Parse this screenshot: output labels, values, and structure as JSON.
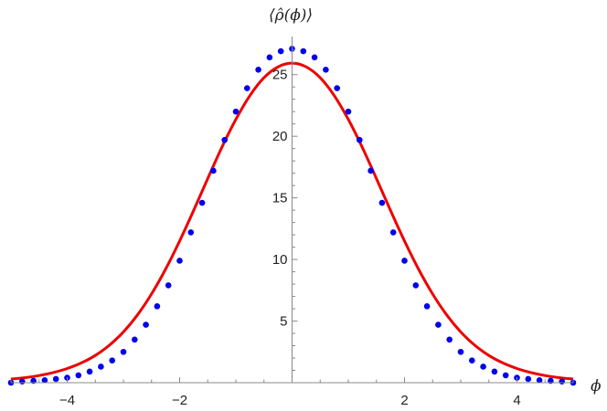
{
  "chart_data": {
    "type": "scatter",
    "xlabel": "ϕ",
    "ylabel": "⟨ρ̂(ϕ)⟩",
    "xlim": [
      -5,
      5
    ],
    "ylim": [
      0,
      27.5
    ],
    "x_ticks_major": [
      -4,
      -2,
      2,
      4
    ],
    "y_ticks_major": [
      5,
      10,
      15,
      20,
      25
    ],
    "grid": false,
    "colors": {
      "points": "#0000ee",
      "curve": "#ee0000",
      "axes": "#888888"
    },
    "series": [
      {
        "kind": "points",
        "x": [
          -5.0,
          -4.8,
          -4.6,
          -4.4,
          -4.2,
          -4.0,
          -3.8,
          -3.6,
          -3.4,
          -3.2,
          -3.0,
          -2.8,
          -2.6,
          -2.4,
          -2.2,
          -2.0,
          -1.8,
          -1.6,
          -1.4,
          -1.2,
          -1.0,
          -0.8,
          -0.6,
          -0.4,
          -0.2,
          0.0,
          0.2,
          0.4,
          0.6,
          0.8,
          1.0,
          1.2,
          1.4,
          1.6,
          1.8,
          2.0,
          2.2,
          2.4,
          2.6,
          2.8,
          3.0,
          3.2,
          3.4,
          3.6,
          3.8,
          4.0,
          4.2,
          4.4,
          4.6,
          4.8,
          5.0
        ],
        "y": [
          0.0,
          0.1,
          0.15,
          0.2,
          0.3,
          0.4,
          0.6,
          0.9,
          1.3,
          1.8,
          2.5,
          3.5,
          4.7,
          6.2,
          7.9,
          9.9,
          12.2,
          14.6,
          17.2,
          19.7,
          22.0,
          23.9,
          25.4,
          26.4,
          26.9,
          27.1,
          26.9,
          26.4,
          25.4,
          23.9,
          22.0,
          19.7,
          17.2,
          14.6,
          12.2,
          9.9,
          7.9,
          6.2,
          4.7,
          3.5,
          2.5,
          1.8,
          1.3,
          0.9,
          0.6,
          0.4,
          0.3,
          0.2,
          0.15,
          0.1,
          0.0
        ]
      },
      {
        "kind": "line",
        "x": [
          -5.0,
          -4.75,
          -4.5,
          -4.25,
          -4.0,
          -3.75,
          -3.5,
          -3.25,
          -3.0,
          -2.75,
          -2.5,
          -2.25,
          -2.0,
          -1.75,
          -1.5,
          -1.25,
          -1.0,
          -0.75,
          -0.5,
          -0.25,
          0.0,
          0.25,
          0.5,
          0.75,
          1.0,
          1.25,
          1.5,
          1.75,
          2.0,
          2.25,
          2.5,
          2.75,
          3.0,
          3.25,
          3.5,
          3.75,
          4.0,
          4.25,
          4.5,
          4.75,
          5.0
        ],
        "y": [
          0.29,
          0.41,
          0.58,
          0.82,
          1.15,
          1.6,
          2.21,
          3.04,
          4.12,
          5.5,
          7.2,
          9.21,
          11.5,
          13.99,
          16.57,
          19.09,
          21.37,
          23.3,
          24.75,
          25.63,
          25.93,
          25.63,
          24.75,
          23.3,
          21.37,
          19.09,
          16.57,
          13.99,
          11.5,
          9.21,
          7.2,
          5.5,
          4.12,
          3.04,
          2.21,
          1.6,
          1.15,
          0.82,
          0.58,
          0.41,
          0.29
        ]
      }
    ]
  }
}
